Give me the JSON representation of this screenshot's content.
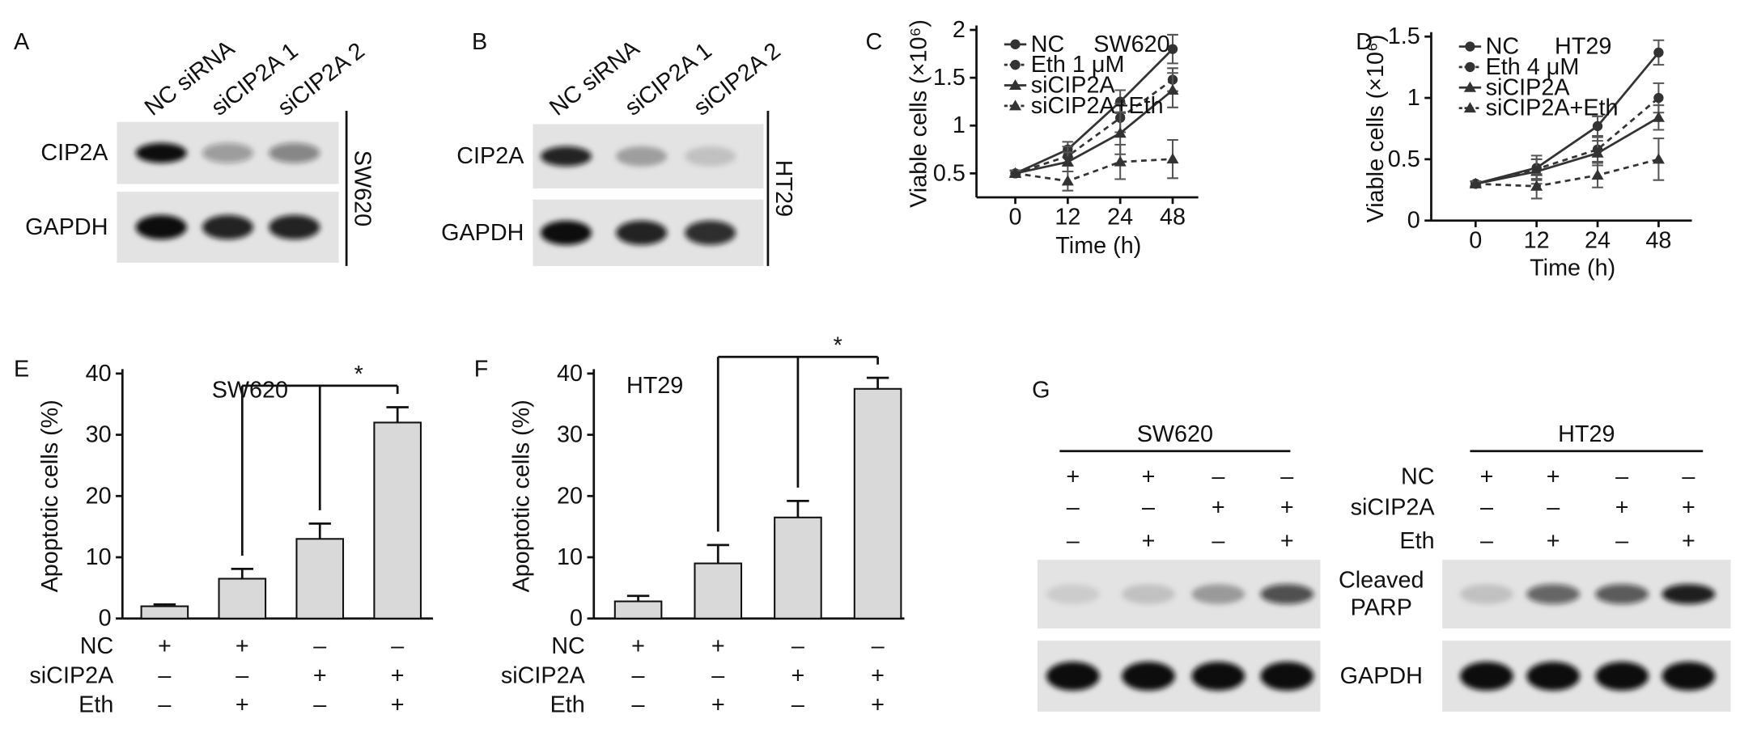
{
  "blots": [
    {
      "panel": "A",
      "lanes": [
        "NC siRNA",
        "siCIP2A 1",
        "siCIP2A 2"
      ],
      "rows": [
        "CIP2A",
        "GAPDH"
      ],
      "cell_line": "SW620"
    },
    {
      "panel": "B",
      "lanes": [
        "NC siRNA",
        "siCIP2A 1",
        "siCIP2A 2"
      ],
      "rows": [
        "CIP2A",
        "GAPDH"
      ],
      "cell_line": "HT29"
    },
    {
      "panel": "G",
      "condition_names": [
        "NC",
        "siCIP2A",
        "Eth"
      ],
      "groups": [
        {
          "name": "SW620",
          "signs": [
            [
              "+",
              "+",
              "–",
              "–"
            ],
            [
              "–",
              "–",
              "+",
              "+"
            ],
            [
              "–",
              "+",
              "–",
              "+"
            ]
          ]
        },
        {
          "name": "HT29",
          "signs": [
            [
              "+",
              "+",
              "–",
              "–"
            ],
            [
              "–",
              "–",
              "+",
              "+"
            ],
            [
              "–",
              "+",
              "–",
              "+"
            ]
          ]
        }
      ],
      "row_labels": [
        {
          "lines": [
            "Cleaved",
            "PARP"
          ]
        },
        {
          "lines": [
            "GAPDH"
          ]
        }
      ]
    }
  ],
  "chart_data": [
    {
      "type": "line",
      "panel": "C",
      "title": "SW620",
      "x_label": "Time (h)",
      "y_label": "Viable cells (×10⁶)",
      "categories": [
        "0",
        "12",
        "24",
        "48"
      ],
      "ylim": [
        0.25,
        2
      ],
      "yticks": [
        0.5,
        1,
        1.5,
        2
      ],
      "series": [
        {
          "name": "NC",
          "color": "#333333",
          "line_style": "solid",
          "marker": "circle",
          "values": [
            0.5,
            0.75,
            1.25,
            1.8
          ],
          "errors": [
            0.03,
            0.08,
            0.12,
            0.15
          ]
        },
        {
          "name": "Eth 1 μM",
          "color": "#333333",
          "line_style": "dashed",
          "marker": "circle",
          "values": [
            0.5,
            0.68,
            1.08,
            1.48
          ],
          "errors": [
            0.03,
            0.1,
            0.15,
            0.12
          ]
        },
        {
          "name": "siCIP2A",
          "color": "#333333",
          "line_style": "solid",
          "marker": "triangle",
          "values": [
            0.5,
            0.62,
            0.92,
            1.37
          ],
          "errors": [
            0.03,
            0.1,
            0.22,
            0.18
          ]
        },
        {
          "name": "siCIP2A+Eth",
          "color": "#333333",
          "line_style": "dashed",
          "marker": "triangle",
          "values": [
            0.5,
            0.42,
            0.62,
            0.65
          ],
          "errors": [
            0.03,
            0.1,
            0.18,
            0.2
          ]
        }
      ]
    },
    {
      "type": "line",
      "panel": "D",
      "title": "HT29",
      "x_label": "Time (h)",
      "y_label": "Viable cells (×10⁶)",
      "categories": [
        "0",
        "12",
        "24",
        "48"
      ],
      "ylim": [
        0,
        1.5
      ],
      "yticks": [
        0,
        0.5,
        1,
        1.5
      ],
      "series": [
        {
          "name": "NC",
          "color": "#333333",
          "line_style": "solid",
          "marker": "circle",
          "values": [
            0.3,
            0.43,
            0.77,
            1.37
          ],
          "errors": [
            0.02,
            0.1,
            0.08,
            0.1
          ]
        },
        {
          "name": "Eth 4 μM",
          "color": "#333333",
          "line_style": "dashed",
          "marker": "circle",
          "values": [
            0.3,
            0.42,
            0.58,
            1.0
          ],
          "errors": [
            0.02,
            0.08,
            0.1,
            0.12
          ]
        },
        {
          "name": "siCIP2A",
          "color": "#333333",
          "line_style": "solid",
          "marker": "triangle",
          "values": [
            0.3,
            0.4,
            0.55,
            0.84
          ],
          "errors": [
            0.02,
            0.1,
            0.1,
            0.1
          ]
        },
        {
          "name": "siCIP2A+Eth",
          "color": "#333333",
          "line_style": "dashed",
          "marker": "triangle",
          "values": [
            0.3,
            0.28,
            0.37,
            0.5
          ],
          "errors": [
            0.02,
            0.1,
            0.1,
            0.17
          ]
        }
      ]
    },
    {
      "type": "bar",
      "panel": "E",
      "title": "SW620",
      "y_label": "Apoptotic cells (%)",
      "color": "#d9d9d9",
      "values": [
        2,
        6.5,
        13,
        32
      ],
      "errors": [
        0.3,
        1.6,
        2.5,
        2.5
      ],
      "ylim": [
        0,
        40
      ],
      "yticks": [
        0,
        10,
        20,
        30,
        40
      ],
      "conditions": [
        {
          "name": "NC",
          "signs": [
            "+",
            "+",
            "–",
            "–"
          ]
        },
        {
          "name": "siCIP2A",
          "signs": [
            "–",
            "–",
            "+",
            "+"
          ]
        },
        {
          "name": "Eth",
          "signs": [
            "–",
            "+",
            "–",
            "+"
          ]
        }
      ],
      "annotation": "*"
    },
    {
      "type": "bar",
      "panel": "F",
      "title": "HT29",
      "y_label": "Apoptotic cells (%)",
      "color": "#d9d9d9",
      "values": [
        2.8,
        9,
        16.5,
        37.5
      ],
      "errors": [
        0.9,
        3,
        2.7,
        1.8
      ],
      "ylim": [
        0,
        40
      ],
      "yticks": [
        0,
        10,
        20,
        30,
        40
      ],
      "conditions": [
        {
          "name": "NC",
          "signs": [
            "+",
            "+",
            "–",
            "–"
          ]
        },
        {
          "name": "siCIP2A",
          "signs": [
            "–",
            "–",
            "+",
            "+"
          ]
        },
        {
          "name": "Eth",
          "signs": [
            "–",
            "+",
            "–",
            "+"
          ]
        }
      ],
      "annotation": "*"
    }
  ]
}
